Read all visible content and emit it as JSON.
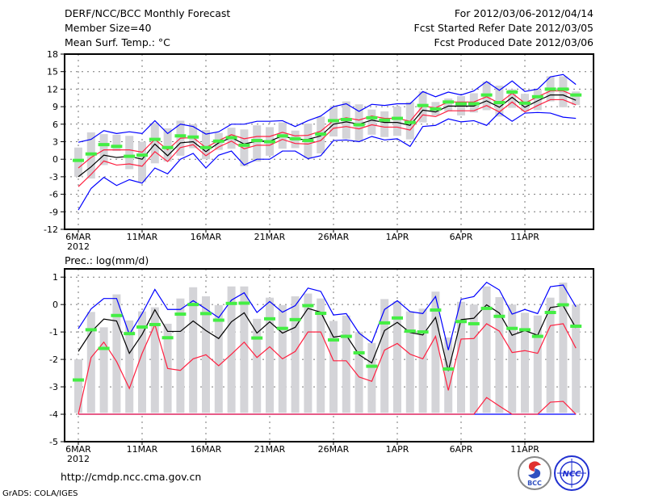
{
  "header": {
    "title": "DERF/NCC/BCC Monthly Forecast",
    "member_size": "Member Size=40",
    "variable": "Mean Surf. Temp.: °C",
    "period": "For 2012/03/06-2012/04/14",
    "started": "Fcst Started Refer Date 2012/03/05",
    "produced": "Fcst Produced Date 2012/03/06"
  },
  "footer": {
    "url": "http://cmdp.ncc.cma.gov.cn",
    "grads": "GrADS: COLA/IGES",
    "logo_bcc": "BCC",
    "logo_ncc": "NCC"
  },
  "colors": {
    "mean": "#000000",
    "spread": "#ff2040",
    "envelope": "#0000ff",
    "median": "#44ee44",
    "box": "#d4d4d8"
  },
  "chart_data": [
    {
      "type": "line",
      "title": "Mean Surf. Temp.: °C",
      "panel_label": "",
      "xlabel": "",
      "ylabel": "°C",
      "ylim": [
        -12,
        18
      ],
      "yticks": [
        -12,
        -9,
        -6,
        -3,
        0,
        3,
        6,
        9,
        12,
        15,
        18
      ],
      "xtick_days": [
        0,
        5,
        10,
        15,
        20,
        25,
        30,
        35
      ],
      "xtick_labels": [
        "6MAR",
        "11MAR",
        "16MAR",
        "21MAR",
        "26MAR",
        "1APR",
        "6APR",
        "11APR"
      ],
      "xyear": "2012",
      "grid": true,
      "days": 40,
      "mean": [
        -3.0,
        -1.3,
        0.7,
        0.3,
        0.5,
        0.0,
        2.6,
        0.6,
        2.8,
        3.0,
        1.3,
        2.8,
        3.7,
        2.6,
        3.1,
        3.1,
        4.0,
        3.4,
        3.4,
        4.0,
        6.0,
        6.4,
        6.0,
        6.7,
        6.3,
        6.3,
        5.8,
        8.4,
        8.1,
        9.1,
        9.1,
        9.1,
        10.0,
        8.9,
        10.6,
        8.9,
        10.0,
        11.0,
        11.0,
        10.1
      ],
      "spread_upper": [
        -1.5,
        0.3,
        1.6,
        1.6,
        1.6,
        1.2,
        3.4,
        1.6,
        3.6,
        3.7,
        2.0,
        3.2,
        4.2,
        3.5,
        3.9,
        3.9,
        4.6,
        4.0,
        4.1,
        4.8,
        6.6,
        7.1,
        6.7,
        7.4,
        7.0,
        7.0,
        6.5,
        9.1,
        8.8,
        9.8,
        9.8,
        9.8,
        10.7,
        9.6,
        11.3,
        9.6,
        10.7,
        11.7,
        11.7,
        10.8
      ],
      "spread_lower": [
        -4.7,
        -2.6,
        -0.3,
        -1.0,
        -0.8,
        -1.2,
        1.3,
        -0.4,
        2.0,
        2.5,
        0.6,
        2.1,
        3.1,
        1.8,
        2.4,
        2.4,
        3.4,
        2.7,
        2.6,
        3.2,
        5.3,
        5.6,
        5.2,
        5.9,
        5.5,
        5.5,
        5.0,
        7.6,
        7.3,
        8.3,
        8.3,
        8.3,
        9.2,
        8.1,
        9.8,
        8.1,
        9.2,
        10.2,
        10.2,
        9.3
      ],
      "max": [
        2.9,
        3.4,
        4.9,
        4.4,
        4.7,
        4.4,
        6.6,
        4.4,
        6.0,
        5.6,
        4.3,
        4.7,
        6.0,
        6.0,
        6.5,
        6.5,
        6.6,
        5.6,
        6.6,
        7.4,
        9.0,
        9.5,
        8.2,
        9.4,
        9.2,
        9.5,
        9.5,
        11.6,
        10.7,
        11.5,
        11.0,
        11.7,
        13.3,
        11.8,
        13.4,
        11.6,
        12.0,
        14.1,
        14.5,
        12.8
      ],
      "min": [
        -8.7,
        -5.0,
        -3.1,
        -4.5,
        -3.5,
        -4.1,
        -1.5,
        -2.5,
        0.0,
        1.0,
        -1.5,
        0.7,
        1.4,
        -1.0,
        0.0,
        0.0,
        1.4,
        1.4,
        0.1,
        0.6,
        3.2,
        3.3,
        3.0,
        3.9,
        3.3,
        3.5,
        2.2,
        5.6,
        5.8,
        6.9,
        6.4,
        6.6,
        5.8,
        8.0,
        6.5,
        7.9,
        8.0,
        7.9,
        7.2,
        7.0
      ],
      "median": [
        -0.2,
        0.9,
        2.5,
        2.2,
        0.5,
        0.7,
        3.4,
        2.0,
        4.0,
        3.8,
        2.0,
        3.1,
        3.7,
        2.4,
        3.2,
        3.0,
        4.0,
        3.5,
        3.2,
        4.3,
        6.6,
        6.8,
        5.9,
        7.1,
        6.7,
        7.0,
        6.3,
        9.2,
        8.6,
        9.8,
        9.5,
        9.5,
        11.0,
        9.7,
        11.5,
        9.6,
        10.7,
        12.0,
        12.0,
        11.0
      ],
      "box_low": [
        -3.0,
        -3.3,
        -1.0,
        1.4,
        -1.7,
        -3.9,
        -0.7,
        -0.4,
        0.6,
        1.9,
        0.0,
        1.6,
        1.8,
        -1.2,
        -0.4,
        0.6,
        1.8,
        1.9,
        0.2,
        1.0,
        3.9,
        3.5,
        3.0,
        4.2,
        3.8,
        4.0,
        3.4,
        6.3,
        7.5,
        8.2,
        7.5,
        8.0,
        8.4,
        7.3,
        8.8,
        8.2,
        8.4,
        9.9,
        8.9,
        9.3
      ],
      "box_high": [
        2.0,
        4.6,
        4.3,
        4.2,
        4.0,
        3.0,
        6.2,
        5.3,
        6.6,
        6.0,
        5.0,
        4.5,
        5.4,
        5.1,
        5.8,
        5.5,
        6.3,
        4.9,
        6.1,
        7.3,
        9.0,
        9.9,
        9.4,
        8.5,
        8.2,
        9.0,
        9.8,
        11.6,
        9.8,
        10.4,
        10.8,
        11.3,
        13.3,
        12.6,
        12.0,
        11.2,
        11.9,
        14.2,
        14.2,
        11.6
      ]
    },
    {
      "type": "line",
      "title": "Prec.: log(mm/d)",
      "panel_label": "Prec.: log(mm/d)",
      "xlabel": "",
      "ylabel": "log(mm/d)",
      "ylim": [
        -5,
        1.3
      ],
      "yticks": [
        -5,
        -4,
        -3,
        -2,
        -1,
        0,
        1
      ],
      "xtick_days": [
        0,
        5,
        10,
        15,
        20,
        25,
        30,
        35
      ],
      "xtick_labels": [
        "6MAR",
        "11MAR",
        "16MAR",
        "21MAR",
        "26MAR",
        "1APR",
        "6APR",
        "11APR"
      ],
      "xyear": "2012",
      "grid": true,
      "days": 40,
      "mean": [
        -1.71,
        -1.0,
        -0.53,
        -0.6,
        -1.78,
        -1.09,
        -0.19,
        -0.98,
        -0.98,
        -0.6,
        -0.95,
        -1.24,
        -0.63,
        -0.3,
        -1.04,
        -0.63,
        -1.04,
        -0.83,
        -0.14,
        -0.28,
        -1.19,
        -1.12,
        -1.83,
        -2.13,
        -0.95,
        -0.65,
        -1.02,
        -1.11,
        -0.47,
        -2.42,
        -0.55,
        -0.5,
        -0.01,
        -0.31,
        -1.12,
        -0.95,
        -1.12,
        -0.11,
        -0.04,
        -0.85
      ],
      "spread_upper": [
        -4.0,
        -1.93,
        -1.37,
        -2.08,
        -3.06,
        -1.78,
        -0.73,
        -2.33,
        -2.4,
        -1.98,
        -1.83,
        -2.23,
        -1.81,
        -1.37,
        -1.93,
        -1.54,
        -1.98,
        -1.71,
        -1.0,
        -1.0,
        -2.05,
        -2.05,
        -2.64,
        -2.8,
        -1.66,
        -1.42,
        -1.81,
        -1.98,
        -1.16,
        -3.13,
        -1.26,
        -1.24,
        -0.7,
        -0.97,
        -1.75,
        -1.68,
        -1.78,
        -0.77,
        -0.7,
        -1.59
      ],
      "spread_lower": [
        -4,
        -4,
        -4,
        -4,
        -4,
        -4,
        -4,
        -4,
        -4,
        -4,
        -4,
        -4,
        -4,
        -4,
        -4,
        -4,
        -4,
        -4,
        -4,
        -4,
        -4,
        -4,
        -4,
        -4,
        -4,
        -4,
        -4,
        -4,
        -4,
        -4,
        -4,
        -4,
        -3.39,
        -3.7,
        -4,
        -4,
        -4,
        -3.56,
        -3.53,
        -4
      ],
      "max": [
        -0.88,
        -0.16,
        0.22,
        0.22,
        -1.09,
        -0.33,
        0.55,
        -0.18,
        -0.18,
        0.14,
        -0.16,
        -0.48,
        0.16,
        0.43,
        -0.29,
        0.11,
        -0.28,
        -0.04,
        0.6,
        0.48,
        -0.38,
        -0.33,
        -1.04,
        -1.39,
        -0.18,
        0.14,
        -0.26,
        -0.33,
        0.29,
        -1.66,
        0.19,
        0.29,
        0.81,
        0.53,
        -0.35,
        -0.18,
        -0.33,
        0.65,
        0.71,
        -0.08
      ],
      "min": [
        -4,
        -4,
        -4,
        -4,
        -4,
        -4,
        -4,
        -4,
        -4,
        -4,
        -4,
        -4,
        -4,
        -4,
        -4,
        -4,
        -4,
        -4,
        -4,
        -4,
        -4,
        -4,
        -4,
        -4,
        -4,
        -4,
        -4,
        -4,
        -4,
        -4,
        -4,
        -4,
        -4,
        -4,
        -4,
        -4,
        -4,
        -4,
        -4,
        -4
      ],
      "median": [
        -2.75,
        -0.92,
        -1.6,
        -0.4,
        -1.06,
        -0.82,
        -0.73,
        -1.21,
        -0.35,
        0.0,
        -0.33,
        -0.57,
        0.04,
        0.05,
        -1.22,
        -0.52,
        -0.87,
        -0.55,
        -0.04,
        -0.32,
        -1.29,
        -1.16,
        -1.76,
        -2.25,
        -0.67,
        -0.49,
        -0.97,
        -1.0,
        -0.2,
        -2.35,
        -0.62,
        -0.7,
        -0.14,
        -0.43,
        -0.87,
        -0.92,
        -1.16,
        -0.29,
        -0.01,
        -0.79
      ],
      "box_low": [
        -3.95,
        -3.95,
        -3.95,
        -3.95,
        -3.95,
        -3.95,
        -3.95,
        -3.95,
        -3.95,
        -3.95,
        -3.95,
        -3.95,
        -3.95,
        -3.95,
        -3.95,
        -3.95,
        -3.95,
        -3.95,
        -3.95,
        -3.95,
        -3.95,
        -3.95,
        -3.95,
        -3.95,
        -3.95,
        -3.95,
        -3.95,
        -3.95,
        -3.95,
        -3.95,
        -3.95,
        -3.95,
        -3.95,
        -3.95,
        -3.95,
        -3.95,
        -3.95,
        -3.95,
        -3.95,
        -3.95
      ],
      "box_high": [
        -2.0,
        -0.27,
        -0.83,
        0.37,
        -0.58,
        -0.25,
        -0.1,
        -0.7,
        0.22,
        0.63,
        0.3,
        -0.02,
        0.66,
        0.66,
        -0.52,
        0.25,
        -0.02,
        0.3,
        0.4,
        0.22,
        -0.6,
        -0.4,
        -1.0,
        -1.4,
        0.2,
        0.12,
        -0.25,
        -0.15,
        0.47,
        -1.2,
        0.1,
        0.0,
        0.66,
        0.27,
        0.0,
        -0.3,
        -0.4,
        0.25,
        0.8,
        0.0
      ]
    }
  ]
}
